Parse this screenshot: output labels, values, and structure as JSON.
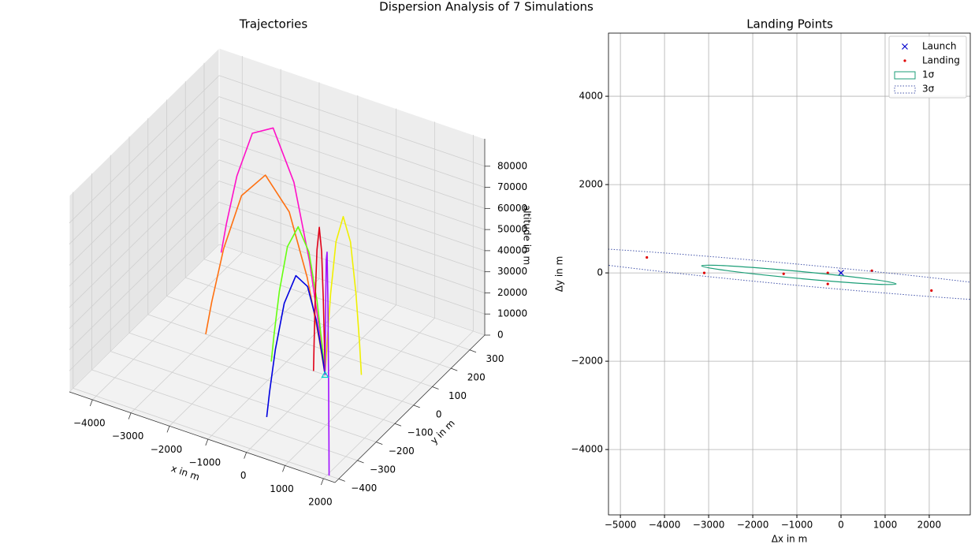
{
  "title": "Dispersion Analysis of 7 Simulations",
  "chart_data": [
    {
      "type": "line3d",
      "title": "Trajectories",
      "xlabel": "x in m",
      "ylabel": "y in m",
      "zlabel": "altitude in m",
      "xlim": [
        -4600,
        2300
      ],
      "ylim": [
        -420,
        380
      ],
      "zlim": [
        0,
        93000
      ],
      "xticks": [
        {
          "value": -4000,
          "label": "−4000"
        },
        {
          "value": -3000,
          "label": "−3000"
        },
        {
          "value": -2000,
          "label": "−2000"
        },
        {
          "value": -1000,
          "label": "−1000"
        },
        0,
        1000,
        2000
      ],
      "yticks": [
        {
          "value": -400,
          "label": "−400"
        },
        {
          "value": -300,
          "label": "−300"
        },
        {
          "value": -200,
          "label": "−200"
        },
        {
          "value": -100,
          "label": "−100"
        },
        0,
        100,
        200,
        300
      ],
      "zticks": [
        0,
        10000,
        20000,
        30000,
        40000,
        50000,
        60000,
        70000,
        80000
      ],
      "launch": {
        "x": 0,
        "y": 0,
        "z": 0,
        "color": "#00d0d0"
      },
      "series": [
        {
          "color": "#ff10c8",
          "x": [
            0,
            -220,
            -660,
            -1320,
            -2200,
            -3080,
            -3740,
            -4180,
            -4400
          ],
          "y": [
            0,
            18,
            53,
            105,
            175,
            245,
            298,
            333,
            350
          ],
          "z": [
            0,
            16700,
            44900,
            73900,
            88000,
            73900,
            44900,
            16700,
            0
          ]
        },
        {
          "color": "#ff7010",
          "x": [
            0,
            -155,
            -465,
            -930,
            -1550,
            -2170,
            -2635,
            -2945,
            -3100
          ],
          "y": [
            0,
            0,
            0,
            0,
            0,
            0,
            0,
            0,
            0
          ],
          "z": [
            0,
            16150,
            43350,
            71400,
            85000,
            71400,
            43350,
            16150,
            0
          ]
        },
        {
          "color": "#66ff10",
          "x": [
            0,
            -65,
            -195,
            -390,
            -650,
            -910,
            -1105,
            -1235,
            -1300
          ],
          "y": [
            0,
            -1,
            -3,
            -6,
            -10,
            -14,
            -17,
            -19,
            -20
          ],
          "z": [
            0,
            12730,
            34170,
            56280,
            67000,
            56280,
            34170,
            12730,
            0
          ]
        },
        {
          "color": "#0000e0",
          "x": [
            0,
            -15,
            -45,
            -90,
            -150,
            -210,
            -255,
            -285,
            -300
          ],
          "y": [
            0,
            -13,
            -38,
            -75,
            -125,
            -175,
            -213,
            -238,
            -250
          ],
          "z": [
            0,
            10830,
            29070,
            47880,
            57000,
            47880,
            29070,
            10830,
            0
          ]
        },
        {
          "color": "#e00018",
          "x": [
            0,
            -15,
            -45,
            -90,
            -150,
            -210,
            -255,
            -285,
            -300
          ],
          "y": [
            0,
            0,
            0,
            0,
            0,
            0,
            0,
            0,
            0
          ],
          "z": [
            0,
            13110,
            35190,
            57960,
            69000,
            57960,
            35190,
            13110,
            0
          ]
        },
        {
          "color": "#f0f000",
          "x": [
            0,
            35,
            105,
            210,
            350,
            490,
            595,
            665,
            700
          ],
          "y": [
            0,
            3,
            8,
            15,
            25,
            35,
            43,
            48,
            50
          ],
          "z": [
            0,
            14250,
            38250,
            63000,
            75000,
            63000,
            38250,
            14250,
            0
          ]
        },
        {
          "color": "#a010ff",
          "x": [
            0,
            103,
            308,
            615,
            1025,
            1435,
            1743,
            1948,
            2050
          ],
          "y": [
            0,
            -20,
            -60,
            -120,
            -200,
            -280,
            -340,
            -380,
            -400
          ],
          "z": [
            0,
            15580,
            41820,
            68880,
            82000,
            68880,
            41820,
            15580,
            0
          ]
        }
      ]
    },
    {
      "type": "scatter",
      "title": "Landing Points",
      "xlabel": "Δx in m",
      "ylabel": "Δy in m",
      "xlim": [
        -5270,
        2930
      ],
      "ylim": [
        -5480,
        5430
      ],
      "grid": true,
      "legend": "upper right",
      "xticks": [
        {
          "value": -5000,
          "label": "−5000"
        },
        {
          "value": -4000,
          "label": "−4000"
        },
        {
          "value": -3000,
          "label": "−3000"
        },
        {
          "value": -2000,
          "label": "−2000"
        },
        {
          "value": -1000,
          "label": "−1000"
        },
        0,
        1000,
        2000
      ],
      "yticks": [
        {
          "value": -4000,
          "label": "−4000"
        },
        {
          "value": -2000,
          "label": "−2000"
        },
        0,
        2000,
        4000
      ],
      "series": [
        {
          "name": "Launch",
          "marker": "x",
          "color": "#0000cc",
          "x": [
            0
          ],
          "y": [
            0
          ]
        },
        {
          "name": "Landing",
          "marker": "dot",
          "color": "#e00000",
          "x": [
            -4400,
            -3100,
            -1300,
            -300,
            -300,
            700,
            2050
          ],
          "y": [
            350,
            0,
            -20,
            -250,
            0,
            50,
            -400
          ]
        },
        {
          "name": "1σ",
          "marker": "ellipse",
          "color": "#1b9e77",
          "linestyle": "solid",
          "cx": -955,
          "cy": -45,
          "rx": 2215,
          "ry": 80,
          "angle": -5.3
        },
        {
          "name": "3σ",
          "marker": "ellipse",
          "color": "#4455aa",
          "linestyle": "dotted",
          "cx": -955,
          "cy": -45,
          "rx": 6645,
          "ry": 240,
          "angle": -5.3
        }
      ]
    }
  ]
}
